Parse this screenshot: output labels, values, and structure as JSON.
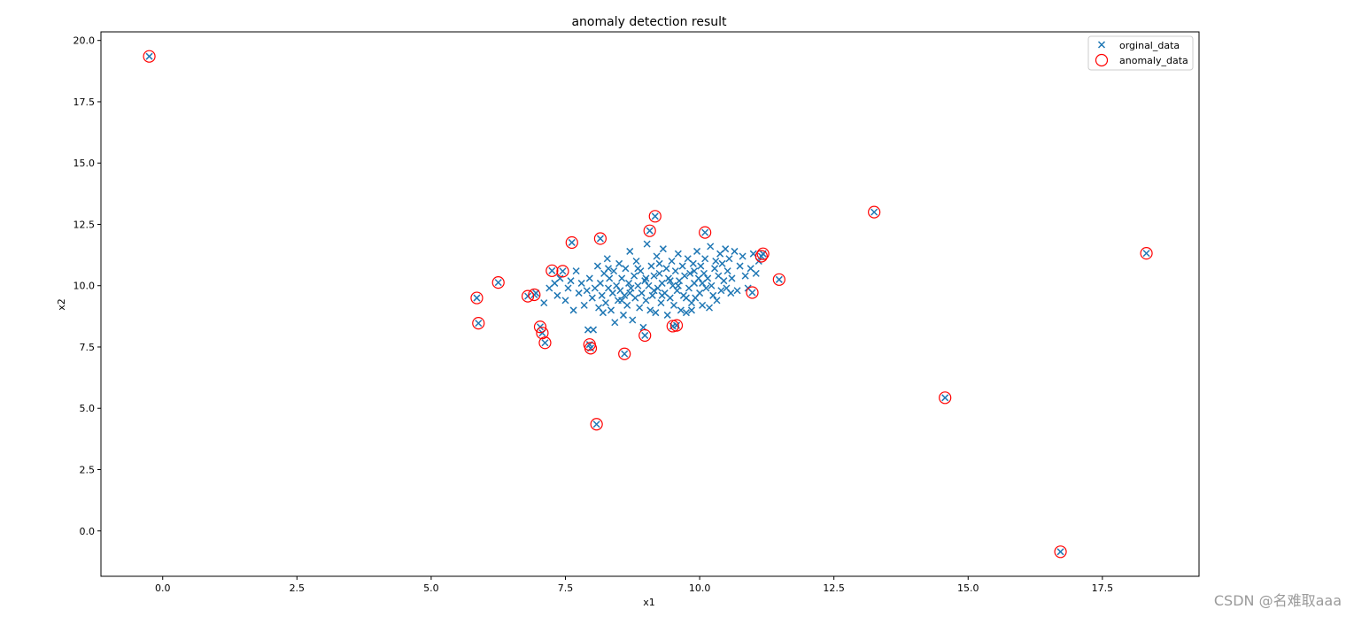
{
  "chart_data": {
    "type": "scatter",
    "title": "anomaly detection result",
    "xlabel": "x1",
    "ylabel": "x2",
    "xlim": [
      -1.15,
      19.3
    ],
    "ylim": [
      -1.85,
      20.35
    ],
    "xticks": [
      0.0,
      2.5,
      5.0,
      7.5,
      10.0,
      12.5,
      15.0,
      17.5
    ],
    "xtick_labels": [
      "0.0",
      "2.5",
      "5.0",
      "7.5",
      "10.0",
      "12.5",
      "15.0",
      "17.5"
    ],
    "yticks": [
      0.0,
      2.5,
      5.0,
      7.5,
      10.0,
      12.5,
      15.0,
      17.5,
      20.0
    ],
    "ytick_labels": [
      "0.0",
      "2.5",
      "5.0",
      "7.5",
      "10.0",
      "12.5",
      "15.0",
      "17.5",
      "20.0"
    ],
    "grid": false,
    "legend_position": "top-right",
    "series": [
      {
        "name": "orginal_data",
        "marker": "x",
        "color": "#1f77b4",
        "points": [
          [
            -0.25,
            19.35
          ],
          [
            5.85,
            9.5
          ],
          [
            5.88,
            8.47
          ],
          [
            6.25,
            10.13
          ],
          [
            6.8,
            9.57
          ],
          [
            6.92,
            9.63
          ],
          [
            7.03,
            8.32
          ],
          [
            7.07,
            8.07
          ],
          [
            7.12,
            7.67
          ],
          [
            7.25,
            10.61
          ],
          [
            7.45,
            10.59
          ],
          [
            7.62,
            11.76
          ],
          [
            7.95,
            7.6
          ],
          [
            7.97,
            7.45
          ],
          [
            8.08,
            4.35
          ],
          [
            8.15,
            11.92
          ],
          [
            8.6,
            7.22
          ],
          [
            8.98,
            7.97
          ],
          [
            9.07,
            12.24
          ],
          [
            9.17,
            12.83
          ],
          [
            9.5,
            8.35
          ],
          [
            9.57,
            8.38
          ],
          [
            10.1,
            12.17
          ],
          [
            10.98,
            9.72
          ],
          [
            11.15,
            11.2
          ],
          [
            11.18,
            11.3
          ],
          [
            11.48,
            10.25
          ],
          [
            13.25,
            13.0
          ],
          [
            14.57,
            5.43
          ],
          [
            16.72,
            -0.85
          ],
          [
            18.32,
            11.32
          ],
          [
            6.95,
            9.7
          ],
          [
            7.1,
            9.3
          ],
          [
            7.2,
            9.9
          ],
          [
            7.3,
            10.1
          ],
          [
            7.35,
            9.6
          ],
          [
            7.4,
            10.3
          ],
          [
            7.5,
            9.4
          ],
          [
            7.55,
            9.9
          ],
          [
            7.6,
            10.2
          ],
          [
            7.65,
            9.0
          ],
          [
            7.7,
            10.6
          ],
          [
            7.75,
            9.7
          ],
          [
            7.8,
            10.1
          ],
          [
            7.85,
            9.2
          ],
          [
            7.9,
            9.8
          ],
          [
            7.92,
            8.2
          ],
          [
            7.95,
            10.3
          ],
          [
            8.0,
            9.5
          ],
          [
            8.02,
            8.2
          ],
          [
            8.05,
            9.9
          ],
          [
            8.1,
            10.8
          ],
          [
            8.12,
            9.1
          ],
          [
            8.15,
            10.1
          ],
          [
            8.18,
            9.6
          ],
          [
            8.2,
            8.9
          ],
          [
            8.22,
            10.5
          ],
          [
            8.25,
            9.3
          ],
          [
            8.28,
            11.1
          ],
          [
            8.3,
            9.9
          ],
          [
            8.32,
            10.3
          ],
          [
            8.35,
            9.0
          ],
          [
            8.38,
            9.7
          ],
          [
            8.4,
            10.6
          ],
          [
            8.42,
            8.5
          ],
          [
            8.45,
            10.0
          ],
          [
            8.48,
            9.4
          ],
          [
            8.5,
            10.9
          ],
          [
            8.52,
            9.8
          ],
          [
            8.55,
            10.3
          ],
          [
            8.58,
            8.8
          ],
          [
            8.6,
            9.6
          ],
          [
            8.62,
            10.7
          ],
          [
            8.65,
            9.2
          ],
          [
            8.68,
            10.1
          ],
          [
            8.7,
            11.4
          ],
          [
            8.72,
            9.9
          ],
          [
            8.75,
            8.6
          ],
          [
            8.78,
            10.4
          ],
          [
            8.8,
            9.5
          ],
          [
            8.82,
            11.0
          ],
          [
            8.85,
            10.0
          ],
          [
            8.88,
            9.1
          ],
          [
            8.9,
            10.6
          ],
          [
            8.92,
            9.7
          ],
          [
            8.95,
            8.3
          ],
          [
            8.98,
            10.2
          ],
          [
            9.0,
            9.4
          ],
          [
            9.02,
            11.7
          ],
          [
            9.05,
            10.0
          ],
          [
            9.08,
            9.0
          ],
          [
            9.1,
            10.8
          ],
          [
            9.12,
            9.6
          ],
          [
            9.15,
            10.4
          ],
          [
            9.18,
            8.9
          ],
          [
            9.2,
            11.2
          ],
          [
            9.22,
            9.9
          ],
          [
            9.25,
            10.5
          ],
          [
            9.28,
            9.3
          ],
          [
            9.3,
            10.1
          ],
          [
            9.32,
            11.5
          ],
          [
            9.35,
            9.7
          ],
          [
            9.38,
            10.7
          ],
          [
            9.4,
            8.8
          ],
          [
            9.42,
            10.3
          ],
          [
            9.45,
            9.5
          ],
          [
            9.48,
            11.0
          ],
          [
            9.5,
            10.0
          ],
          [
            9.52,
            9.2
          ],
          [
            9.55,
            10.6
          ],
          [
            9.58,
            9.8
          ],
          [
            9.6,
            11.3
          ],
          [
            9.62,
            10.2
          ],
          [
            9.65,
            9.0
          ],
          [
            9.68,
            10.8
          ],
          [
            9.7,
            9.6
          ],
          [
            9.72,
            10.4
          ],
          [
            9.75,
            8.9
          ],
          [
            9.78,
            11.1
          ],
          [
            9.8,
            9.9
          ],
          [
            9.82,
            10.5
          ],
          [
            9.85,
            9.3
          ],
          [
            9.88,
            10.9
          ],
          [
            9.9,
            10.1
          ],
          [
            9.92,
            9.5
          ],
          [
            9.95,
            11.4
          ],
          [
            9.98,
            10.3
          ],
          [
            10.0,
            9.7
          ],
          [
            10.02,
            10.8
          ],
          [
            10.05,
            9.2
          ],
          [
            10.08,
            10.5
          ],
          [
            10.1,
            11.1
          ],
          [
            10.12,
            9.9
          ],
          [
            10.15,
            10.3
          ],
          [
            10.18,
            9.1
          ],
          [
            10.2,
            11.6
          ],
          [
            10.22,
            10.0
          ],
          [
            10.25,
            9.6
          ],
          [
            10.28,
            10.7
          ],
          [
            10.3,
            11.0
          ],
          [
            10.32,
            9.4
          ],
          [
            10.35,
            10.4
          ],
          [
            10.38,
            11.3
          ],
          [
            10.4,
            9.8
          ],
          [
            10.42,
            10.9
          ],
          [
            10.45,
            10.2
          ],
          [
            10.48,
            11.5
          ],
          [
            10.5,
            9.9
          ],
          [
            10.52,
            10.6
          ],
          [
            10.55,
            11.1
          ],
          [
            10.58,
            9.7
          ],
          [
            10.6,
            10.3
          ],
          [
            10.65,
            11.4
          ],
          [
            10.7,
            9.8
          ],
          [
            10.75,
            10.8
          ],
          [
            10.8,
            11.2
          ],
          [
            10.85,
            10.4
          ],
          [
            10.9,
            9.9
          ],
          [
            10.95,
            10.7
          ],
          [
            11.0,
            11.3
          ],
          [
            11.05,
            10.5
          ],
          [
            11.1,
            11.0
          ],
          [
            8.3,
            10.7
          ],
          [
            8.55,
            9.4
          ],
          [
            8.85,
            10.7
          ],
          [
            9.15,
            9.8
          ],
          [
            9.45,
            10.2
          ],
          [
            9.75,
            9.5
          ],
          [
            10.05,
            10.1
          ],
          [
            9.0,
            10.3
          ],
          [
            9.3,
            9.6
          ],
          [
            9.6,
            10.0
          ],
          [
            9.9,
            10.6
          ],
          [
            8.7,
            9.7
          ],
          [
            9.25,
            10.9
          ],
          [
            9.85,
            9.0
          ]
        ]
      },
      {
        "name": "anomaly_data",
        "marker": "o",
        "color": "#ff0000",
        "points": [
          [
            -0.25,
            19.35
          ],
          [
            5.85,
            9.5
          ],
          [
            5.88,
            8.47
          ],
          [
            6.25,
            10.13
          ],
          [
            6.8,
            9.57
          ],
          [
            6.92,
            9.63
          ],
          [
            7.03,
            8.32
          ],
          [
            7.07,
            8.07
          ],
          [
            7.12,
            7.67
          ],
          [
            7.25,
            10.61
          ],
          [
            7.45,
            10.59
          ],
          [
            7.62,
            11.76
          ],
          [
            7.95,
            7.6
          ],
          [
            7.97,
            7.45
          ],
          [
            8.08,
            4.35
          ],
          [
            8.15,
            11.92
          ],
          [
            8.6,
            7.22
          ],
          [
            8.98,
            7.97
          ],
          [
            9.07,
            12.24
          ],
          [
            9.17,
            12.83
          ],
          [
            9.5,
            8.35
          ],
          [
            9.57,
            8.38
          ],
          [
            10.1,
            12.17
          ],
          [
            10.98,
            9.72
          ],
          [
            11.15,
            11.2
          ],
          [
            11.18,
            11.3
          ],
          [
            11.48,
            10.25
          ],
          [
            13.25,
            13.0
          ],
          [
            14.57,
            5.43
          ],
          [
            16.72,
            -0.85
          ],
          [
            18.32,
            11.32
          ]
        ]
      }
    ]
  },
  "watermark": "CSDN @名难取aaa"
}
